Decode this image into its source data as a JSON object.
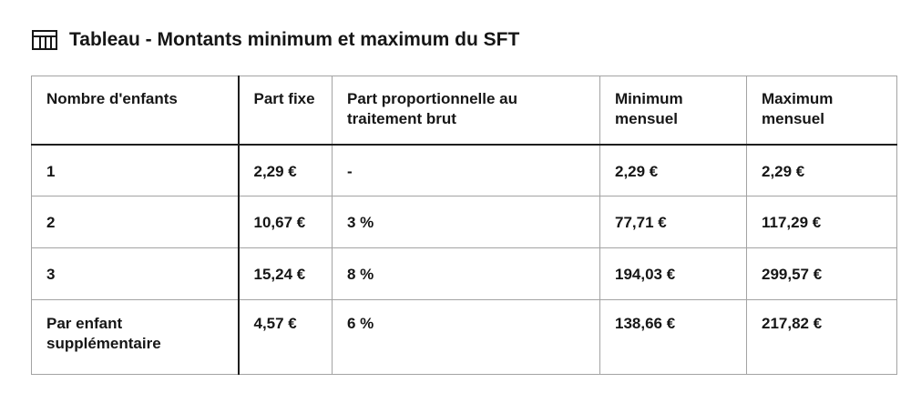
{
  "table": {
    "title": "Tableau - Montants minimum et maximum du SFT",
    "icon": "table-icon",
    "headers": [
      "Nombre d'enfants",
      "Part fixe",
      "Part proportionnelle au traitement brut",
      "Minimum mensuel",
      "Maximum mensuel"
    ],
    "rows": [
      [
        "1",
        "2,29 €",
        "-",
        "2,29 €",
        "2,29 €"
      ],
      [
        "2",
        "10,67 €",
        "3 %",
        "77,71 €",
        "117,29 €"
      ],
      [
        "3",
        "15,24 €",
        "8 %",
        "194,03 €",
        "299,57 €"
      ],
      [
        "Par enfant supplémentaire",
        "4,57 €",
        "6 %",
        "138,66 €",
        "217,82 €"
      ]
    ]
  },
  "colors": {
    "text": "#161616",
    "border": "#a3a3a3",
    "strong_border": "#1e1e1e"
  }
}
